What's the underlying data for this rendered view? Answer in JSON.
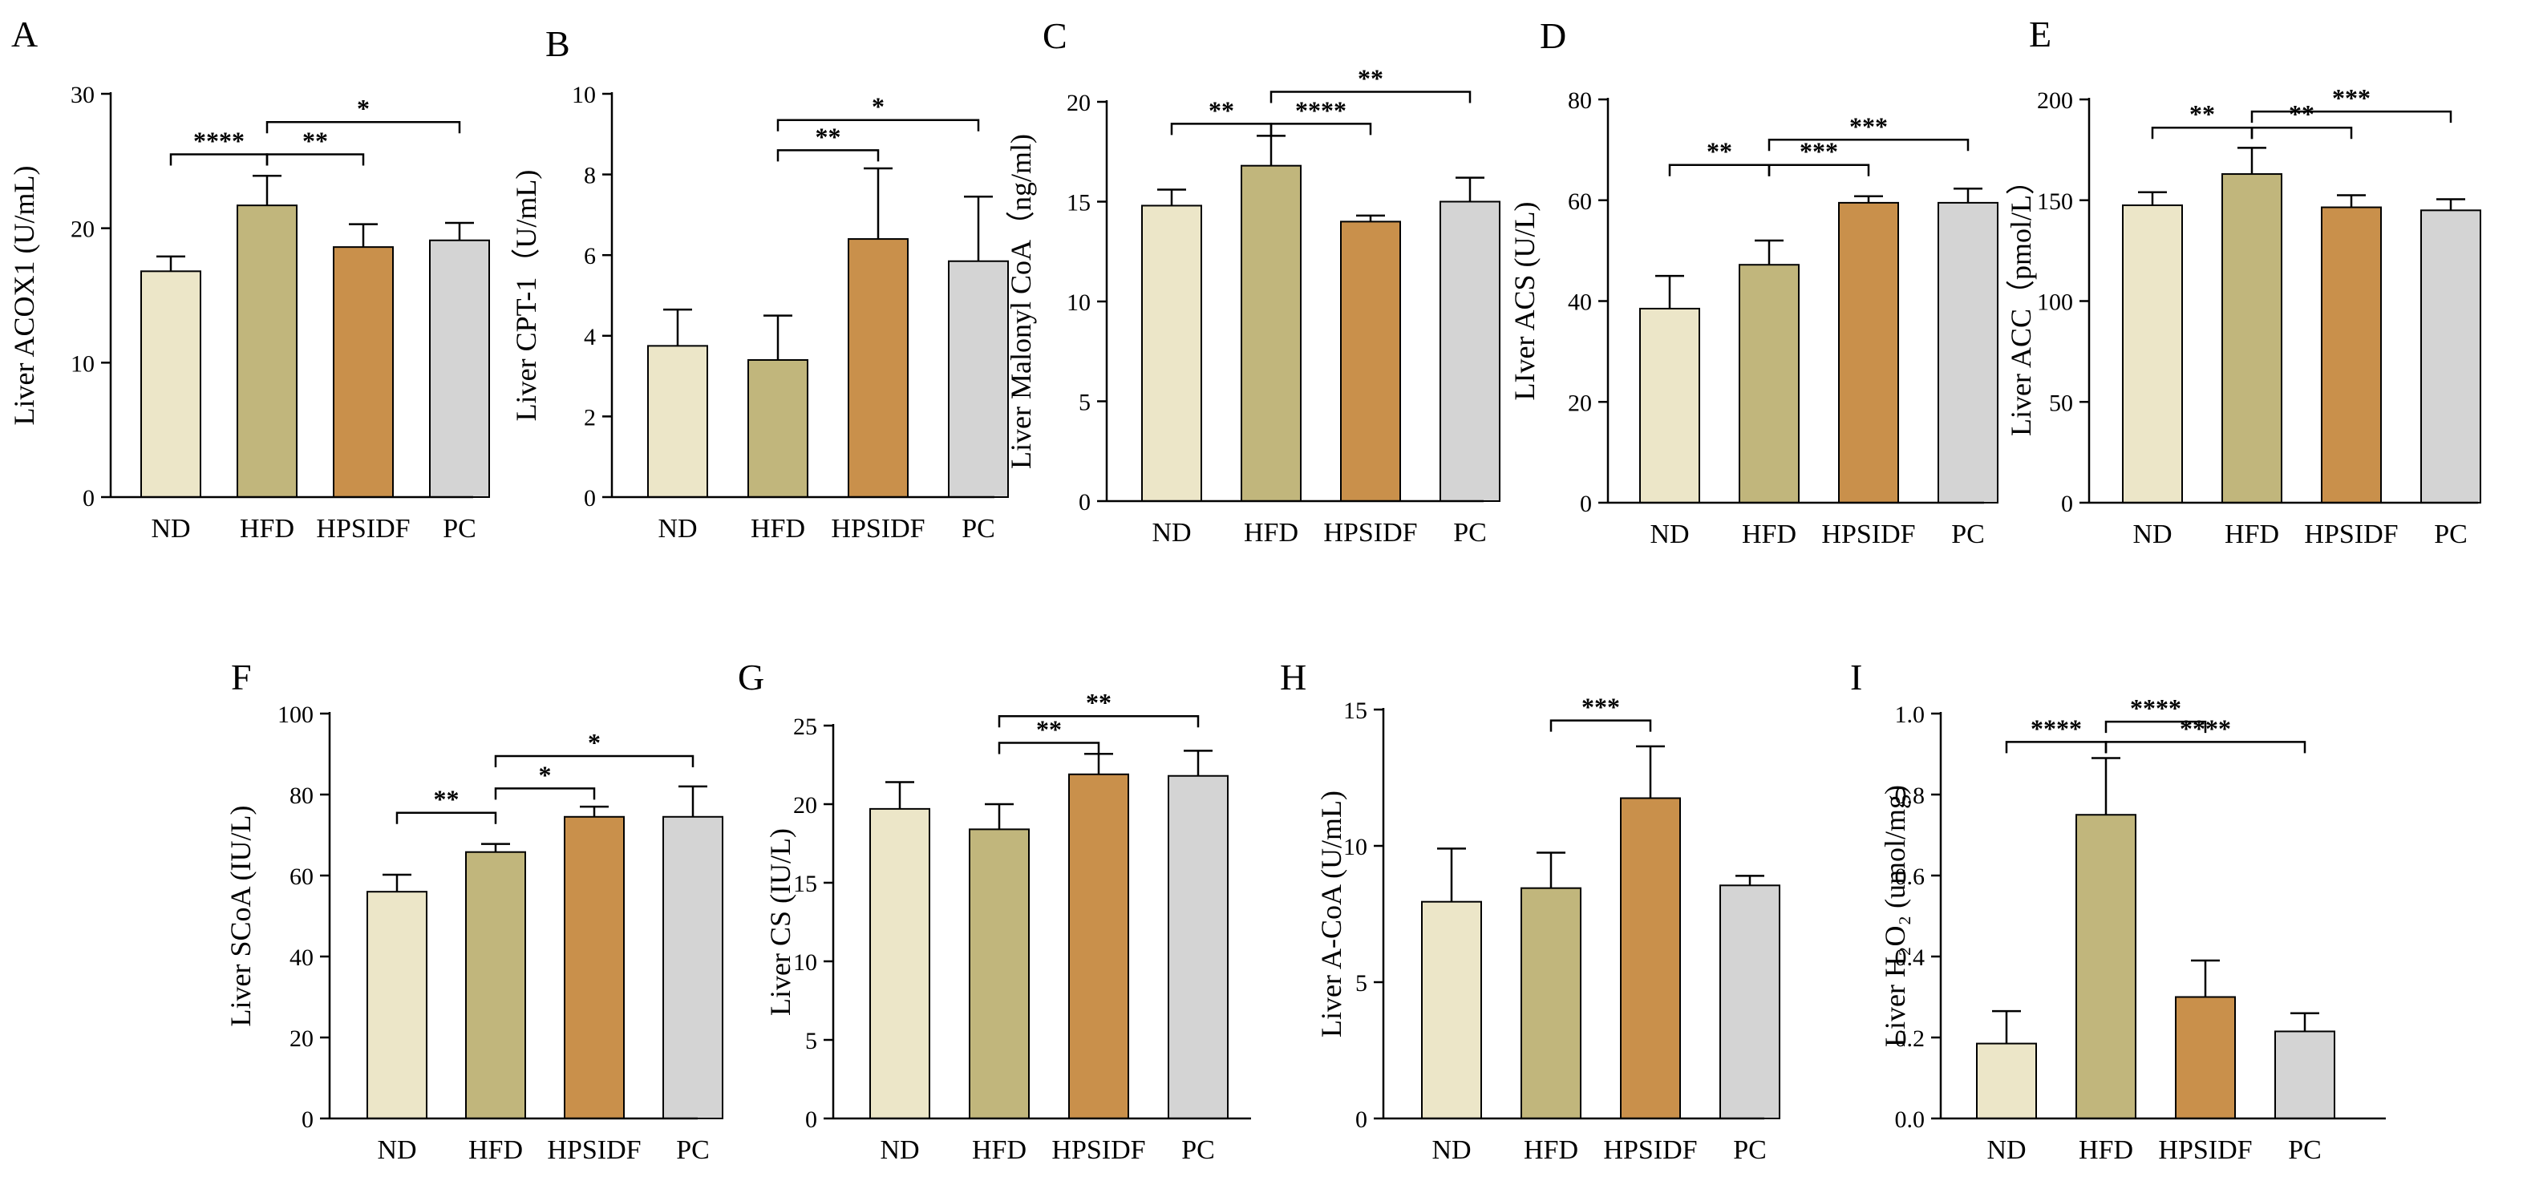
{
  "figure": {
    "colors": {
      "ND": "#ece6c8",
      "HFD": "#c1b67c",
      "HPSIDF": "#c9904b",
      "PC": "#d4d4d4"
    },
    "categories": [
      "ND",
      "HFD",
      "HPSIDF",
      "PC"
    ]
  },
  "chart_data": [
    {
      "panel": "A",
      "type": "bar",
      "ylabel": "Liver ACOX1 (U/mL)",
      "categories": [
        "ND",
        "HFD",
        "HPSIDF",
        "PC"
      ],
      "values": [
        16.8,
        21.7,
        18.6,
        19.1
      ],
      "errors": [
        1.1,
        2.2,
        1.7,
        1.3
      ],
      "ylim": [
        0,
        30
      ],
      "yticks": [
        0,
        10,
        20,
        30
      ],
      "significance": [
        {
          "from": "ND",
          "to": "HFD",
          "label": "****",
          "y": 25.5
        },
        {
          "from": "HFD",
          "to": "HPSIDF",
          "label": "**",
          "y": 25.5
        },
        {
          "from": "HFD",
          "to": "PC",
          "label": "*",
          "y": 27.9
        }
      ]
    },
    {
      "panel": "B",
      "type": "bar",
      "ylabel": "Liver CPT-1（U/mL)",
      "categories": [
        "ND",
        "HFD",
        "HPSIDF",
        "PC"
      ],
      "values": [
        3.75,
        3.4,
        6.4,
        5.85
      ],
      "errors": [
        0.9,
        1.1,
        1.75,
        1.6
      ],
      "ylim": [
        0,
        10
      ],
      "yticks": [
        0,
        2,
        4,
        6,
        8,
        10
      ],
      "significance": [
        {
          "from": "HFD",
          "to": "HPSIDF",
          "label": "**",
          "y": 8.6
        },
        {
          "from": "HFD",
          "to": "PC",
          "label": "*",
          "y": 9.35
        }
      ]
    },
    {
      "panel": "C",
      "type": "bar",
      "ylabel": "Liver Malonyl CoA（ng/ml)",
      "categories": [
        "ND",
        "HFD",
        "HPSIDF",
        "PC"
      ],
      "values": [
        14.8,
        16.8,
        14.0,
        15.0
      ],
      "errors": [
        0.8,
        1.5,
        0.3,
        1.2
      ],
      "ylim": [
        0,
        20
      ],
      "yticks": [
        0,
        5,
        10,
        15,
        20
      ],
      "significance": [
        {
          "from": "ND",
          "to": "HFD",
          "label": "**",
          "y": 18.9
        },
        {
          "from": "HFD",
          "to": "HPSIDF",
          "label": "****",
          "y": 18.9
        },
        {
          "from": "HFD",
          "to": "PC",
          "label": "**",
          "y": 20.5
        }
      ]
    },
    {
      "panel": "D",
      "type": "bar",
      "ylabel": "LIver ACS (U/L)",
      "categories": [
        "ND",
        "HFD",
        "HPSIDF",
        "PC"
      ],
      "values": [
        38.5,
        47.2,
        59.5,
        59.5
      ],
      "errors": [
        6.5,
        4.8,
        1.3,
        2.8
      ],
      "ylim": [
        0,
        80
      ],
      "yticks": [
        0,
        20,
        40,
        60,
        80
      ],
      "significance": [
        {
          "from": "ND",
          "to": "HFD",
          "label": "**",
          "y": 67
        },
        {
          "from": "HFD",
          "to": "HPSIDF",
          "label": "***",
          "y": 67
        },
        {
          "from": "HFD",
          "to": "PC",
          "label": "***",
          "y": 72
        }
      ]
    },
    {
      "panel": "E",
      "type": "bar",
      "ylabel": "Liver ACC（pmol/L）",
      "categories": [
        "ND",
        "HFD",
        "HPSIDF",
        "PC"
      ],
      "values": [
        147.5,
        163.0,
        146.5,
        145.0
      ],
      "errors": [
        6.5,
        13.0,
        6.0,
        5.5
      ],
      "ylim": [
        0,
        200
      ],
      "yticks": [
        0,
        50,
        100,
        150,
        200
      ],
      "significance": [
        {
          "from": "ND",
          "to": "HFD",
          "label": "**",
          "y": 186
        },
        {
          "from": "HFD",
          "to": "HPSIDF",
          "label": "**",
          "y": 186
        },
        {
          "from": "HFD",
          "to": "PC",
          "label": "***",
          "y": 194
        }
      ]
    },
    {
      "panel": "F",
      "type": "bar",
      "ylabel": "Liver SCoA (IU/L)",
      "categories": [
        "ND",
        "HFD",
        "HPSIDF",
        "PC"
      ],
      "values": [
        56.0,
        65.8,
        74.5,
        74.5
      ],
      "errors": [
        4.2,
        2.0,
        2.5,
        7.5
      ],
      "ylim": [
        0,
        100
      ],
      "yticks": [
        0,
        20,
        40,
        60,
        80,
        100
      ],
      "significance": [
        {
          "from": "ND",
          "to": "HFD",
          "label": "**",
          "y": 75.5
        },
        {
          "from": "HFD",
          "to": "HPSIDF",
          "label": "*",
          "y": 81.5
        },
        {
          "from": "HFD",
          "to": "PC",
          "label": "*",
          "y": 89.5
        }
      ]
    },
    {
      "panel": "G",
      "type": "bar",
      "ylabel": "Liver CS (IU/L)",
      "categories": [
        "ND",
        "HFD",
        "HPSIDF",
        "PC"
      ],
      "values": [
        19.7,
        18.4,
        21.9,
        21.8
      ],
      "errors": [
        1.7,
        1.6,
        1.3,
        1.6
      ],
      "ylim": [
        0,
        25
      ],
      "yticks": [
        0,
        5,
        10,
        15,
        20,
        25
      ],
      "significance": [
        {
          "from": "HFD",
          "to": "HPSIDF",
          "label": "**",
          "y": 23.9
        },
        {
          "from": "HFD",
          "to": "PC",
          "label": "**",
          "y": 25.6
        }
      ]
    },
    {
      "panel": "H",
      "type": "bar",
      "ylabel": "Liver A-CoA (U/mL)",
      "categories": [
        "ND",
        "HFD",
        "HPSIDF",
        "PC"
      ],
      "values": [
        7.95,
        8.45,
        11.75,
        8.55
      ],
      "errors": [
        1.95,
        1.3,
        1.9,
        0.35
      ],
      "ylim": [
        0,
        15
      ],
      "yticks": [
        0,
        5,
        10,
        15
      ],
      "significance": [
        {
          "from": "HFD",
          "to": "HPSIDF",
          "label": "***",
          "y": 14.6
        }
      ]
    },
    {
      "panel": "I",
      "type": "bar",
      "ylabel": "Liver H₂O₂ (umol/mg)",
      "categories": [
        "ND",
        "HFD",
        "HPSIDF",
        "PC"
      ],
      "values": [
        0.185,
        0.75,
        0.3,
        0.215
      ],
      "errors": [
        0.08,
        0.14,
        0.09,
        0.045
      ],
      "ylim": [
        0,
        1.0
      ],
      "yticks": [
        0.0,
        0.2,
        0.4,
        0.6,
        0.8,
        1.0
      ],
      "significance": [
        {
          "from": "ND",
          "to": "HFD",
          "label": "****",
          "y": 0.93
        },
        {
          "from": "HFD",
          "to": "HPSIDF",
          "label": "****",
          "y": 0.98
        },
        {
          "from": "HFD",
          "to": "PC",
          "label": "****",
          "y": 0.93
        }
      ]
    }
  ]
}
